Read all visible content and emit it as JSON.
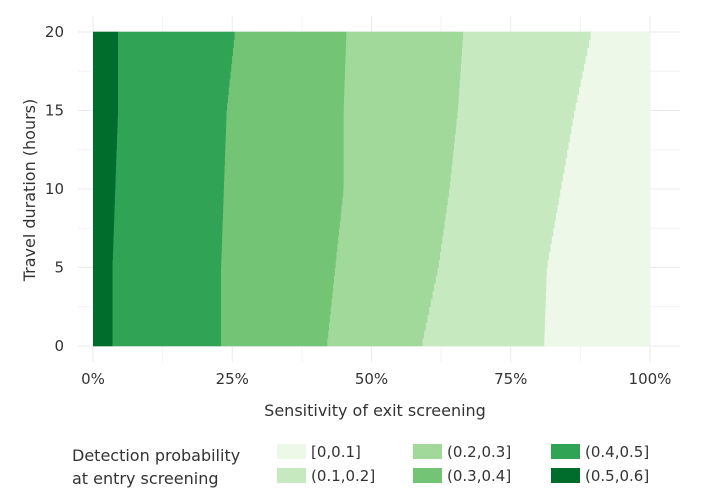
{
  "chart_data": {
    "type": "heatmap",
    "title": "",
    "xlabel": "Sensitivity of exit screening",
    "ylabel": "Travel duration (hours)",
    "x_ticks": [
      0,
      0.25,
      0.5,
      0.75,
      1.0
    ],
    "x_tick_labels": [
      "0%",
      "25%",
      "50%",
      "75%",
      "100%"
    ],
    "y_ticks": [
      0,
      5,
      10,
      15,
      20
    ],
    "y_tick_labels": [
      "0",
      "5",
      "10",
      "15",
      "20"
    ],
    "xlim": [
      0,
      1
    ],
    "ylim": [
      0,
      20
    ],
    "grid": true,
    "legend_position": "bottom",
    "legend_title": [
      "Detection probability",
      "at entry screening"
    ],
    "bins": [
      {
        "label": "[0,0.1]",
        "color": "#edf8e9"
      },
      {
        "label": "(0.1,0.2]",
        "color": "#c7e9c0"
      },
      {
        "label": "(0.2,0.3]",
        "color": "#a1d99b"
      },
      {
        "label": "(0.3,0.4]",
        "color": "#74c476"
      },
      {
        "label": "(0.4,0.5]",
        "color": "#31a354"
      },
      {
        "label": "(0.5,0.6]",
        "color": "#006d2c"
      }
    ],
    "boundaries": {
      "travel_duration_hours": [
        0,
        5,
        10,
        15,
        20
      ],
      "sensitivity_at_bin_edge": [
        {
          "between": "(0.5,0.6] | (0.4,0.5]",
          "values": [
            0.035,
            0.035,
            0.04,
            0.045,
            0.045
          ]
        },
        {
          "between": "(0.4,0.5] | (0.3,0.4]",
          "values": [
            0.23,
            0.23,
            0.235,
            0.24,
            0.255
          ]
        },
        {
          "between": "(0.3,0.4] | (0.2,0.3]",
          "values": [
            0.42,
            0.435,
            0.45,
            0.45,
            0.455
          ]
        },
        {
          "between": "(0.2,0.3] | (0.1,0.2]",
          "values": [
            0.59,
            0.62,
            0.64,
            0.655,
            0.665
          ]
        },
        {
          "between": "(0.1,0.2] | [0,0.1]",
          "values": [
            0.81,
            0.815,
            0.84,
            0.865,
            0.895
          ]
        }
      ]
    }
  }
}
